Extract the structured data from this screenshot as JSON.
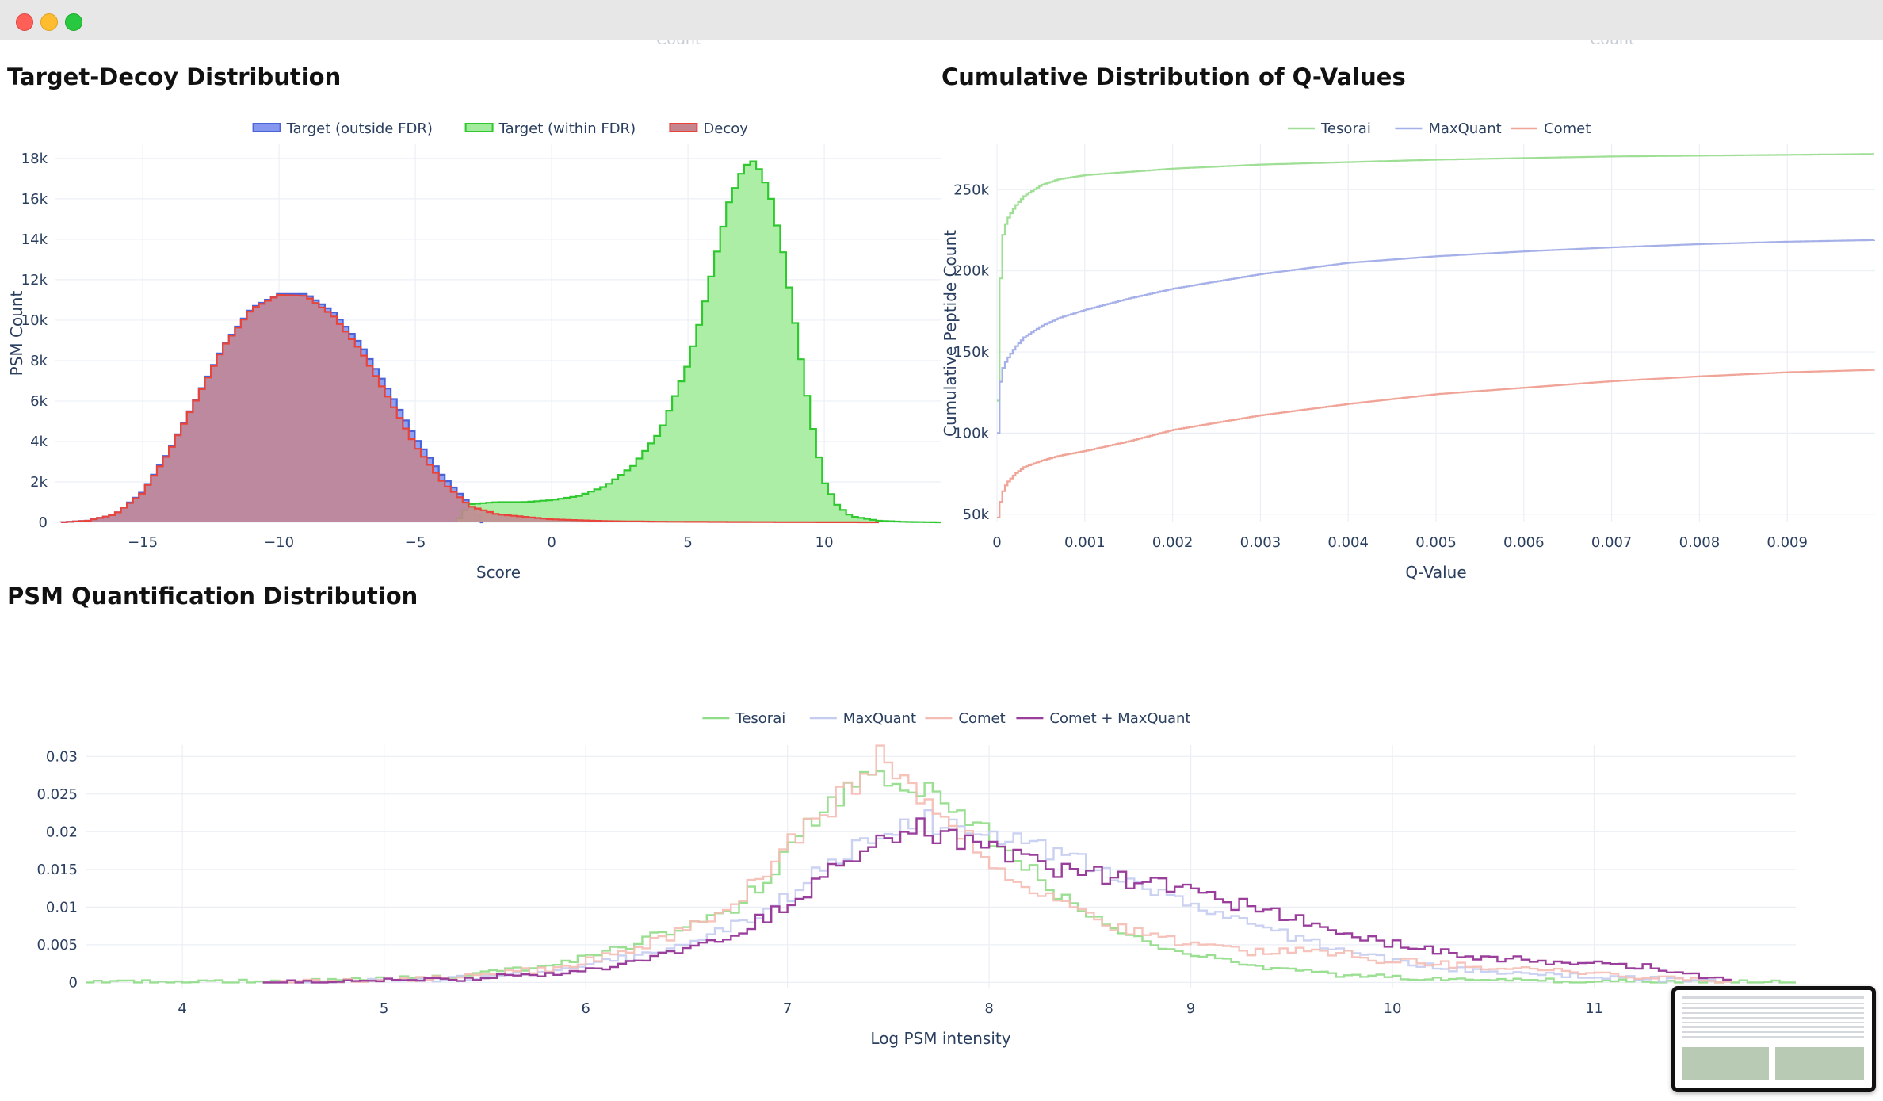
{
  "window": {
    "controls": [
      "close-icon",
      "minimize-icon",
      "maximize-icon"
    ],
    "cut_label": "Count"
  },
  "titles": {
    "target_decoy": "Target-Decoy Distribution",
    "qvalues": "Cumulative Distribution of Q-Values",
    "quant": "PSM Quantification Distribution"
  },
  "chart_data": [
    {
      "id": "target_decoy",
      "type": "area",
      "histogram": true,
      "xlabel": "Score",
      "ylabel": "PSM Count",
      "xlim": [
        -18.2,
        14.3
      ],
      "ylim": [
        0,
        18700
      ],
      "xticks": [
        -15,
        -10,
        -5,
        0,
        5,
        10
      ],
      "xtick_labels": [
        "−15",
        "−10",
        "−5",
        "0",
        "5",
        "10"
      ],
      "yticks": [
        0,
        2000,
        4000,
        6000,
        8000,
        10000,
        12000,
        14000,
        16000,
        18000
      ],
      "ytick_labels": [
        "0",
        "2k",
        "4k",
        "6k",
        "8k",
        "10k",
        "12k",
        "14k",
        "16k",
        "18k"
      ],
      "grid": true,
      "legend_position": "top-center",
      "series": [
        {
          "name": "Target (outside FDR)",
          "color": "#4a63d9",
          "fill": "#8597ee",
          "x": [
            -18,
            -17,
            -16,
            -15,
            -14,
            -13,
            -12,
            -11,
            -10,
            -9,
            -8,
            -7,
            -6,
            -5,
            -4,
            -3,
            -2.5
          ],
          "values": [
            0,
            80,
            400,
            1500,
            3600,
            6200,
            8800,
            10600,
            11300,
            11300,
            10400,
            8800,
            6600,
            4200,
            2300,
            900,
            0
          ]
        },
        {
          "name": "Target (within FDR)",
          "color": "#2fc92f",
          "fill": "#a4ec9d",
          "x": [
            -3.5,
            -3,
            -2,
            -1,
            0,
            1,
            2,
            3,
            4,
            5,
            5.5,
            6,
            6.5,
            7,
            7.3,
            7.5,
            8,
            8.5,
            9,
            9.5,
            10,
            10.5,
            11,
            12,
            13,
            14.3
          ],
          "values": [
            0,
            900,
            1000,
            1000,
            1100,
            1300,
            1800,
            2800,
            4500,
            7800,
            10200,
            13000,
            15800,
            17400,
            17900,
            17800,
            16300,
            13300,
            9300,
            5200,
            2000,
            800,
            300,
            80,
            20,
            0
          ]
        },
        {
          "name": "Decoy",
          "color": "#e8443c",
          "fill": "#c4858f",
          "x": [
            -18,
            -17,
            -16,
            -15,
            -14,
            -13,
            -12,
            -11,
            -10,
            -9,
            -8,
            -7,
            -6,
            -5,
            -4,
            -3,
            -2,
            0,
            2,
            4,
            6,
            8,
            10,
            12
          ],
          "values": [
            0,
            80,
            400,
            1450,
            3550,
            6150,
            8750,
            10550,
            11250,
            11200,
            10200,
            8500,
            6200,
            3800,
            2000,
            800,
            400,
            150,
            60,
            30,
            20,
            10,
            5,
            0
          ]
        }
      ]
    },
    {
      "id": "qvalues",
      "type": "line",
      "step": true,
      "xlabel": "Q-Value",
      "ylabel": "Cumulative Peptide Count",
      "xlim": [
        0,
        0.01
      ],
      "ylim": [
        45000,
        278000
      ],
      "xticks": [
        0,
        0.001,
        0.002,
        0.003,
        0.004,
        0.005,
        0.006,
        0.007,
        0.008,
        0.009
      ],
      "xtick_labels": [
        "0",
        "0.001",
        "0.002",
        "0.003",
        "0.004",
        "0.005",
        "0.006",
        "0.007",
        "0.008",
        "0.009"
      ],
      "yticks": [
        50000,
        100000,
        150000,
        200000,
        250000
      ],
      "ytick_labels": [
        "50k",
        "100k",
        "150k",
        "200k",
        "250k"
      ],
      "grid": true,
      "legend_position": "top-center",
      "series": [
        {
          "name": "Tesorai",
          "color": "#9fdf95",
          "x": [
            0,
            2e-05,
            5e-05,
            0.0001,
            0.0002,
            0.0003,
            0.0005,
            0.0007,
            0.001,
            0.0015,
            0.002,
            0.003,
            0.004,
            0.005,
            0.006,
            0.007,
            0.008,
            0.009,
            0.01
          ],
          "values": [
            120000,
            183000,
            220000,
            231000,
            240000,
            246000,
            253000,
            256500,
            259000,
            261000,
            263000,
            265500,
            267000,
            268500,
            269500,
            270500,
            271000,
            271500,
            272000
          ]
        },
        {
          "name": "MaxQuant",
          "color": "#a6b0e8",
          "x": [
            0,
            2e-05,
            5e-05,
            0.0001,
            0.0002,
            0.0003,
            0.0005,
            0.0007,
            0.001,
            0.0015,
            0.002,
            0.003,
            0.004,
            0.005,
            0.006,
            0.007,
            0.008,
            0.009,
            0.01
          ],
          "values": [
            100000,
            128000,
            139000,
            145000,
            153000,
            159000,
            166000,
            171000,
            176000,
            183000,
            189000,
            198000,
            205000,
            209000,
            212000,
            214500,
            216500,
            218000,
            219000
          ]
        },
        {
          "name": "Comet",
          "color": "#f0a497",
          "x": [
            0,
            2e-05,
            5e-05,
            0.0001,
            0.0002,
            0.0003,
            0.0005,
            0.0007,
            0.001,
            0.0015,
            0.002,
            0.003,
            0.004,
            0.005,
            0.006,
            0.007,
            0.008,
            0.009,
            0.01
          ],
          "values": [
            48000,
            55000,
            63000,
            69000,
            75000,
            79000,
            83000,
            86000,
            89000,
            95000,
            102000,
            111000,
            118000,
            124000,
            128000,
            132000,
            135000,
            137500,
            139000
          ]
        }
      ]
    },
    {
      "id": "quant",
      "type": "line",
      "step": true,
      "xlabel": "Log PSM intensity",
      "ylabel": "",
      "xlim": [
        3.52,
        12.0
      ],
      "ylim": [
        -0.0008,
        0.0315
      ],
      "xticks": [
        4,
        5,
        6,
        7,
        8,
        9,
        10,
        11
      ],
      "xtick_labels": [
        "4",
        "5",
        "6",
        "7",
        "8",
        "9",
        "10",
        "11"
      ],
      "yticks": [
        0,
        0.005,
        0.01,
        0.015,
        0.02,
        0.025,
        0.03
      ],
      "ytick_labels": [
        "0",
        "0.005",
        "0.01",
        "0.015",
        "0.02",
        "0.025",
        "0.03"
      ],
      "grid": true,
      "legend_position": "top-center",
      "series": [
        {
          "name": "Tesorai",
          "color": "#8fdc86",
          "x": [
            3.52,
            4.5,
            5.0,
            5.3,
            5.6,
            5.9,
            6.1,
            6.3,
            6.5,
            6.7,
            6.9,
            7.1,
            7.3,
            7.5,
            7.7,
            7.9,
            8.1,
            8.3,
            8.5,
            8.7,
            8.9,
            9.1,
            9.3,
            9.5,
            9.7,
            10.0,
            10.5,
            11.0,
            11.5,
            12.0
          ],
          "values": [
            0,
            0.0001,
            0.0004,
            0.0008,
            0.0015,
            0.0028,
            0.0042,
            0.0058,
            0.0075,
            0.0095,
            0.014,
            0.021,
            0.026,
            0.027,
            0.026,
            0.022,
            0.017,
            0.012,
            0.0085,
            0.006,
            0.0045,
            0.003,
            0.0022,
            0.0015,
            0.001,
            0.0006,
            0.0003,
            0.0001,
            5e-05,
            0
          ]
        },
        {
          "name": "MaxQuant",
          "color": "#c5ccef",
          "x": [
            4.4,
            5.0,
            5.4,
            5.8,
            6.1,
            6.4,
            6.7,
            7.0,
            7.2,
            7.4,
            7.6,
            7.8,
            8.0,
            8.2,
            8.4,
            8.6,
            8.8,
            9.0,
            9.2,
            9.4,
            9.6,
            9.8,
            10.0,
            10.3,
            10.6,
            11.0,
            11.4,
            11.6
          ],
          "values": [
            0,
            0.0002,
            0.0006,
            0.0015,
            0.0028,
            0.0045,
            0.0072,
            0.0115,
            0.016,
            0.0198,
            0.0215,
            0.021,
            0.0195,
            0.018,
            0.0162,
            0.0142,
            0.0125,
            0.0105,
            0.0085,
            0.0068,
            0.0052,
            0.0038,
            0.0028,
            0.0018,
            0.0012,
            0.0008,
            0.0003,
            0
          ]
        },
        {
          "name": "Comet",
          "color": "#f5bcb4",
          "x": [
            4.4,
            5.0,
            5.4,
            5.8,
            6.1,
            6.4,
            6.7,
            6.9,
            7.1,
            7.3,
            7.45,
            7.6,
            7.8,
            8.0,
            8.2,
            8.4,
            8.6,
            8.8,
            9.0,
            9.3,
            9.6,
            9.9,
            10.2,
            10.5,
            10.8,
            11.1,
            11.4,
            11.7
          ],
          "values": [
            0,
            0.0003,
            0.0008,
            0.0018,
            0.0035,
            0.0062,
            0.01,
            0.0155,
            0.0215,
            0.0258,
            0.0305,
            0.026,
            0.021,
            0.016,
            0.0125,
            0.0095,
            0.0075,
            0.006,
            0.005,
            0.004,
            0.0045,
            0.003,
            0.0025,
            0.002,
            0.0015,
            0.001,
            0.0005,
            0
          ]
        },
        {
          "name": "Comet + MaxQuant",
          "color": "#9a3e9b",
          "x": [
            4.4,
            5.0,
            5.4,
            5.8,
            6.1,
            6.4,
            6.7,
            7.0,
            7.2,
            7.4,
            7.6,
            7.8,
            8.0,
            8.2,
            8.4,
            8.6,
            8.8,
            9.0,
            9.2,
            9.4,
            9.6,
            9.8,
            10.0,
            10.3,
            10.6,
            10.9,
            11.2,
            11.5,
            11.7
          ],
          "values": [
            0,
            0.0002,
            0.0005,
            0.0012,
            0.0022,
            0.0038,
            0.0062,
            0.0105,
            0.015,
            0.0188,
            0.0205,
            0.0195,
            0.0175,
            0.0158,
            0.0148,
            0.0138,
            0.013,
            0.0118,
            0.0105,
            0.0092,
            0.0078,
            0.0062,
            0.005,
            0.0038,
            0.003,
            0.0025,
            0.0022,
            0.0008,
            0
          ]
        }
      ]
    }
  ]
}
